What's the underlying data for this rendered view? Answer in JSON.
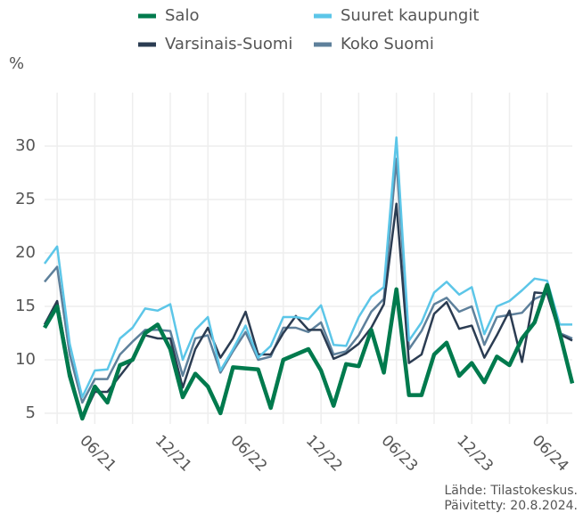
{
  "chart_data": {
    "type": "line",
    "y_label": "%",
    "categories": [
      null,
      null,
      null,
      null,
      "06/21",
      null,
      null,
      null,
      null,
      null,
      "12/21",
      null,
      null,
      null,
      null,
      null,
      "06/22",
      null,
      null,
      null,
      null,
      null,
      "12/22",
      null,
      null,
      null,
      null,
      null,
      "06/23",
      null,
      null,
      null,
      null,
      null,
      "12/23",
      null,
      null,
      null,
      null,
      null,
      "06/24",
      null,
      null
    ],
    "series": [
      {
        "name": "Salo",
        "color": "#007a4d",
        "values": [
          13,
          15,
          8.5,
          4.5,
          7.5,
          6,
          9.5,
          10,
          12.5,
          13.3,
          11,
          6.5,
          8.7,
          7.5,
          5,
          9.3,
          9.2,
          9.1,
          5.5,
          10,
          10.5,
          11,
          9,
          5.7,
          9.6,
          9.4,
          12.8,
          8.8,
          16.6,
          6.7,
          6.7,
          10.5,
          11.6,
          8.5,
          9.7,
          7.9,
          10.3,
          9.5,
          12,
          13.5,
          17,
          12.5,
          7.8
        ]
      },
      {
        "name": "Suuret kaupungit",
        "color": "#5cc6e8",
        "values": [
          19,
          20.6,
          11.5,
          6.5,
          9,
          9.1,
          12,
          13,
          14.8,
          14.6,
          15.2,
          10,
          12.8,
          14,
          9,
          11,
          13.2,
          10.2,
          11.3,
          14,
          14,
          13.8,
          15.1,
          11.4,
          11.3,
          14,
          15.9,
          16.8,
          30.8,
          11.8,
          13.5,
          16.3,
          17.3,
          16.1,
          16.8,
          12.4,
          15,
          15.5,
          16.5,
          17.6,
          17.4,
          13.3,
          13.3
        ]
      },
      {
        "name": "Varsinais-Suomi",
        "color": "#2b3c52",
        "values": [
          13.3,
          15.5,
          9,
          4.5,
          7,
          7,
          8.5,
          10,
          12.3,
          12,
          12,
          7.4,
          11,
          13,
          10.2,
          12,
          14.5,
          10.5,
          10.5,
          12.5,
          14.1,
          12.8,
          12.8,
          10.1,
          10.6,
          11.5,
          13,
          15.2,
          24.6,
          9.7,
          10.5,
          14.3,
          15.4,
          12.9,
          13.2,
          10.2,
          12.3,
          14.6,
          9.8,
          16.3,
          16.2,
          12.4,
          11.8
        ]
      },
      {
        "name": "Koko Suomi",
        "color": "#5e809b",
        "values": [
          17.3,
          18.7,
          10.5,
          6,
          8.2,
          8.2,
          10.5,
          11.7,
          12.8,
          12.8,
          12.7,
          8.5,
          12,
          12.3,
          8.8,
          10.8,
          12.6,
          10,
          10.3,
          13,
          13,
          12.6,
          13.5,
          10.5,
          10.8,
          12.3,
          14.5,
          15.7,
          28.8,
          11,
          12.7,
          15.2,
          15.8,
          14.5,
          15,
          11.4,
          14,
          14.2,
          14.4,
          15.7,
          16.2,
          12.5,
          12
        ]
      }
    ],
    "ylim": [
      4,
      35
    ],
    "yticks": [
      5,
      10,
      15,
      20,
      25,
      30
    ],
    "grid": true,
    "source": [
      "Lähde: Tilastokeskus.",
      "Päivitetty: 20.8.2024."
    ]
  }
}
